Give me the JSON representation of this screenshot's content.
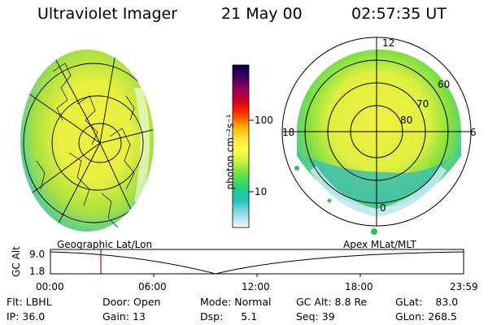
{
  "header": {
    "instrument": "Ultraviolet Imager",
    "date": "21 May 00",
    "time": "02:57:35 UT"
  },
  "colorbar": {
    "unit_label": "photon cm⁻²s⁻¹",
    "tick_100": "100",
    "tick_10": "10",
    "scale": "log",
    "colors_top_to_bottom": [
      "#000040",
      "#3a0060",
      "#8a0060",
      "#d00020",
      "#ff2000",
      "#ff6000",
      "#ffb000",
      "#ffe040",
      "#ffff40",
      "#c0f040",
      "#60e040",
      "#20d080",
      "#20c0c0",
      "#80d8e0",
      "#c0e8f0",
      "#ffffff"
    ]
  },
  "left_panel": {
    "projection_label": "Geographic Lat/Lon"
  },
  "right_panel": {
    "projection_label": "Apex MLat/MLT",
    "mlt_labels": {
      "top": "12",
      "left": "18",
      "right": "6",
      "bottom": "0"
    },
    "mlat_labels": [
      "60",
      "70",
      "80"
    ]
  },
  "altitude_plot": {
    "ylabel": "GC Alt",
    "y_top": "9.0",
    "y_bottom": "1.8",
    "x_ticks": [
      "00:00",
      "06:00",
      "12:00",
      "18:00",
      "23:59"
    ],
    "marker_time": "02:57",
    "marker_color": "#d00000"
  },
  "info": {
    "flt_label": "Flt:",
    "flt_value": "LBHL",
    "door_label": "Door:",
    "door_value": "Open",
    "mode_label": "Mode:",
    "mode_value": "Normal",
    "gcalt_label": "GC Alt:",
    "gcalt_value": "8.8 Re",
    "glat_label": "GLat:",
    "glat_value": "83.0",
    "ip_label": "IP:",
    "ip_value": "36.0",
    "gain_label": "Gain:",
    "gain_value": "13",
    "dsp_label": "Dsp:",
    "dsp_value": "5.1",
    "seq_label": "Seq:",
    "seq_value": "39",
    "glon_label": "GLon:",
    "glon_value": "268.5"
  }
}
